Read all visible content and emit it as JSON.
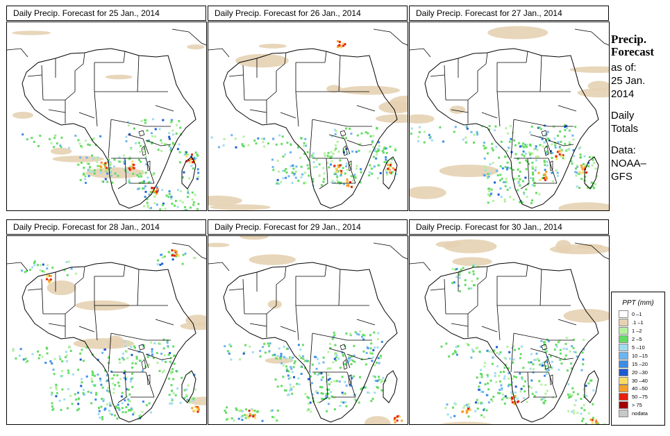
{
  "panels": [
    {
      "title": "Daily Precip. Forecast for  25 Jan., 2014"
    },
    {
      "title": "Daily Precip. Forecast for  26 Jan., 2014"
    },
    {
      "title": "Daily Precip. Forecast for  27 Jan., 2014"
    },
    {
      "title": "Daily Precip. Forecast for  28 Jan., 2014"
    },
    {
      "title": "Daily Precip. Forecast for  29 Jan., 2014"
    },
    {
      "title": "Daily Precip. Forecast for  30 Jan., 2014"
    }
  ],
  "side": {
    "heading1": "Precip.",
    "heading2": "Forecast",
    "asof": "as of:",
    "date1": "25 Jan.",
    "date2": "2014",
    "daily1": "Daily",
    "daily2": "Totals",
    "data1": "Data:",
    "data2": "NOAA–",
    "data3": "GFS"
  },
  "legend": {
    "title": "PPT (mm)",
    "items": [
      {
        "label": "0 –1",
        "color": "#ffffff"
      },
      {
        "label": ".1 –1",
        "color": "#e6d2b2"
      },
      {
        "label": "1 –2",
        "color": "#b4f0a0"
      },
      {
        "label": "2 –5",
        "color": "#64dc64"
      },
      {
        "label": "5 –10",
        "color": "#a0dcf0"
      },
      {
        "label": "10 –15",
        "color": "#6eb4f0"
      },
      {
        "label": "15 –20",
        "color": "#3c8ce6"
      },
      {
        "label": "20 –30",
        "color": "#1e5ad2"
      },
      {
        "label": "30 –40",
        "color": "#fadc64"
      },
      {
        "label": "40 –50",
        "color": "#f5a028"
      },
      {
        "label": "50 –75",
        "color": "#e61e0a"
      },
      {
        "label": "> 75",
        "color": "#a00000"
      },
      {
        "label": "nodata",
        "color": "#c8c8c8"
      }
    ]
  }
}
